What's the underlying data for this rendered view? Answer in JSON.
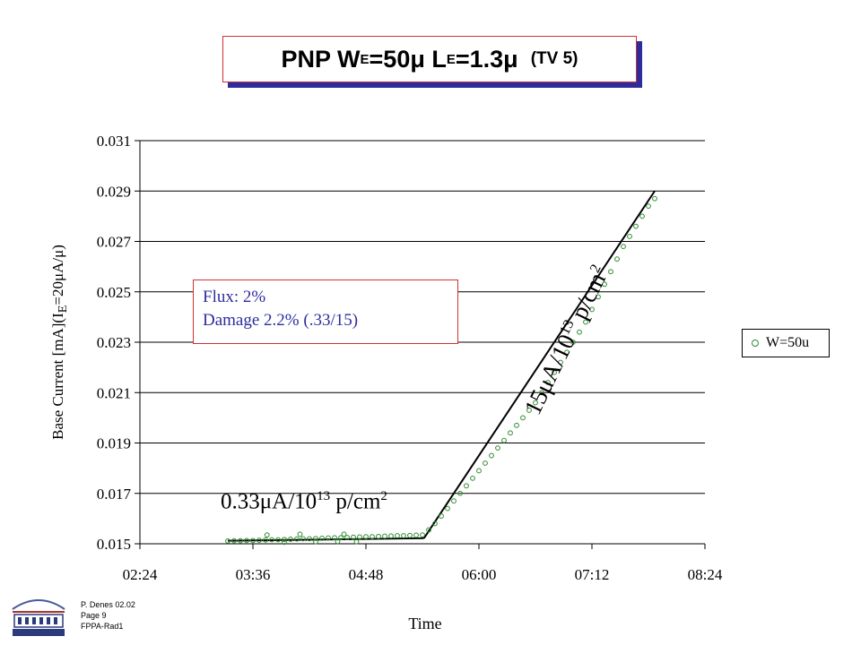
{
  "title": {
    "main": "PNP W",
    "we_sub": "E",
    "we_val": "=50μ L",
    "le_sub": "E",
    "le_val": "=1.3μ",
    "tag": "(TV 5)"
  },
  "chart_data": {
    "type": "scatter",
    "xlabel": "Time",
    "ylabel_main": "Base Current [mA](I",
    "ylabel_sub": "E",
    "ylabel_tail": "=20μA/μ)",
    "xlim": [
      "02:24",
      "08:24"
    ],
    "ylim": [
      0.015,
      0.031
    ],
    "x_ticks": [
      "02:24",
      "03:36",
      "04:48",
      "06:00",
      "07:12",
      "08:24"
    ],
    "y_ticks": [
      "0.031",
      "0.029",
      "0.027",
      "0.025",
      "0.023",
      "0.021",
      "0.019",
      "0.017",
      "0.015"
    ],
    "grid": "horizontal",
    "legend_position": "right",
    "series": [
      {
        "name": "W=50u",
        "color": "#2e8b2e",
        "marker": "circle",
        "points": [
          [
            "03:20",
            0.01511
          ],
          [
            "03:24",
            0.01512
          ],
          [
            "03:28",
            0.01512
          ],
          [
            "03:32",
            0.01513
          ],
          [
            "03:36",
            0.01513
          ],
          [
            "03:40",
            0.01514
          ],
          [
            "03:44",
            0.01515
          ],
          [
            "03:48",
            0.01516
          ],
          [
            "03:52",
            0.01516
          ],
          [
            "03:56",
            0.01517
          ],
          [
            "04:00",
            0.01518
          ],
          [
            "04:04",
            0.01519
          ],
          [
            "04:08",
            0.0152
          ],
          [
            "04:12",
            0.0152
          ],
          [
            "04:16",
            0.01521
          ],
          [
            "04:20",
            0.01522
          ],
          [
            "04:24",
            0.01523
          ],
          [
            "04:28",
            0.01524
          ],
          [
            "04:32",
            0.01524
          ],
          [
            "04:36",
            0.01525
          ],
          [
            "04:40",
            0.01526
          ],
          [
            "04:44",
            0.01527
          ],
          [
            "04:48",
            0.01528
          ],
          [
            "04:52",
            0.01528
          ],
          [
            "04:56",
            0.01529
          ],
          [
            "05:00",
            0.0153
          ],
          [
            "05:04",
            0.01531
          ],
          [
            "05:08",
            0.01532
          ],
          [
            "05:12",
            0.01532
          ],
          [
            "05:16",
            0.01533
          ],
          [
            "05:20",
            0.01534
          ],
          [
            "05:24",
            0.01535
          ],
          [
            "03:45",
            0.01535
          ],
          [
            "03:56",
            0.01506
          ],
          [
            "04:06",
            0.01538
          ],
          [
            "04:16",
            0.01508
          ],
          [
            "04:30",
            0.01509
          ],
          [
            "04:34",
            0.01538
          ],
          [
            "04:42",
            0.01508
          ],
          [
            "05:28",
            0.01555
          ],
          [
            "05:32",
            0.0158
          ],
          [
            "05:36",
            0.0161
          ],
          [
            "05:40",
            0.0164
          ],
          [
            "05:44",
            0.0167
          ],
          [
            "05:48",
            0.017
          ],
          [
            "05:52",
            0.0173
          ],
          [
            "05:56",
            0.0176
          ],
          [
            "06:00",
            0.0179
          ],
          [
            "06:04",
            0.0182
          ],
          [
            "06:08",
            0.0185
          ],
          [
            "06:12",
            0.0188
          ],
          [
            "06:16",
            0.0191
          ],
          [
            "06:20",
            0.0194
          ],
          [
            "06:24",
            0.0197
          ],
          [
            "06:28",
            0.02
          ],
          [
            "06:32",
            0.0203
          ],
          [
            "06:36",
            0.0206
          ],
          [
            "06:40",
            0.021
          ],
          [
            "06:44",
            0.0214
          ],
          [
            "06:48",
            0.0218
          ],
          [
            "06:52",
            0.0222
          ],
          [
            "06:56",
            0.0226
          ],
          [
            "07:00",
            0.023
          ],
          [
            "07:04",
            0.0234
          ],
          [
            "07:08",
            0.0238
          ],
          [
            "07:12",
            0.0243
          ],
          [
            "07:16",
            0.0248
          ],
          [
            "07:20",
            0.0253
          ],
          [
            "07:24",
            0.0258
          ],
          [
            "07:28",
            0.0263
          ],
          [
            "07:32",
            0.0268
          ],
          [
            "07:36",
            0.0272
          ],
          [
            "07:40",
            0.0276
          ],
          [
            "07:44",
            0.028
          ],
          [
            "07:48",
            0.0284
          ],
          [
            "07:52",
            0.0287
          ]
        ]
      }
    ],
    "fit_lines": [
      {
        "from": [
          "03:20",
          0.01512
        ],
        "to": [
          "05:25",
          0.01522
        ]
      },
      {
        "from": [
          "05:25",
          0.01522
        ],
        "to": [
          "07:52",
          0.029
        ]
      }
    ]
  },
  "flux_box": {
    "line1": "Flux: 2%",
    "line2": "Damage 2.2% (.33/15)"
  },
  "annotations": {
    "pre_rate_value": "0.33μA/10",
    "pre_rate_exp": "13",
    "pre_rate_unit": " p/cm",
    "pre_rate_pow": "2",
    "post_rate_value": "15μA/10",
    "post_rate_exp": "13",
    "post_rate_unit": " p/cm",
    "post_rate_pow": "2"
  },
  "footer": {
    "line1": "P. Denes 02.02",
    "line2": "Page 9",
    "line3": "FPPA-Rad1"
  }
}
